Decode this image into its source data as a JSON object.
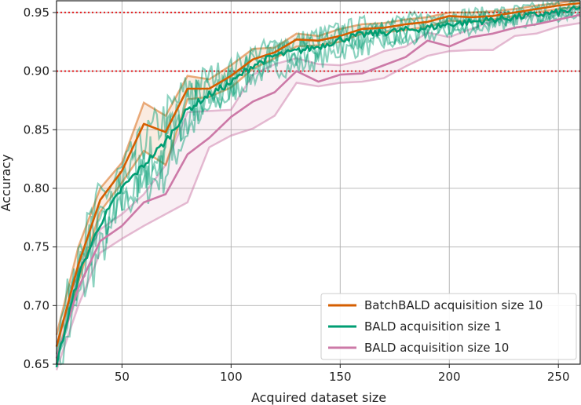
{
  "chart_data": {
    "type": "line",
    "title": "",
    "xlabel": "Acquired dataset size",
    "ylabel": "Accuracy",
    "xlim": [
      20,
      260
    ],
    "ylim": [
      0.65,
      0.96
    ],
    "xticks": [
      50,
      100,
      150,
      200,
      250
    ],
    "xtick_labels": [
      "50",
      "100",
      "150",
      "200",
      "250"
    ],
    "yticks": [
      0.65,
      0.7,
      0.75,
      0.8,
      0.85,
      0.9,
      0.95
    ],
    "ytick_labels": [
      "0.65",
      "0.70",
      "0.75",
      "0.80",
      "0.85",
      "0.90",
      "0.95"
    ],
    "grid": true,
    "legend_position": "lower-right",
    "reference_lines": [
      {
        "y": 0.95,
        "style": "dotted",
        "color": "#e41a1c"
      },
      {
        "y": 0.9,
        "style": "dotted",
        "color": "#e41a1c"
      }
    ],
    "series": [
      {
        "name": "BatchBALD acquisition size 10",
        "color": "#d55e00",
        "step": 10,
        "x": [
          20,
          30,
          40,
          50,
          60,
          70,
          80,
          90,
          100,
          110,
          120,
          130,
          140,
          150,
          160,
          170,
          180,
          190,
          200,
          210,
          220,
          230,
          240,
          250,
          260
        ],
        "mean": [
          0.665,
          0.735,
          0.79,
          0.815,
          0.855,
          0.848,
          0.885,
          0.885,
          0.896,
          0.91,
          0.916,
          0.927,
          0.926,
          0.93,
          0.936,
          0.937,
          0.94,
          0.942,
          0.947,
          0.946,
          0.947,
          0.95,
          0.953,
          0.956,
          0.958
        ],
        "lower": [
          0.655,
          0.72,
          0.78,
          0.805,
          0.832,
          0.82,
          0.876,
          0.878,
          0.886,
          0.902,
          0.911,
          0.921,
          0.922,
          0.925,
          0.932,
          0.933,
          0.935,
          0.938,
          0.943,
          0.942,
          0.944,
          0.947,
          0.95,
          0.953,
          0.955
        ],
        "upper": [
          0.675,
          0.75,
          0.8,
          0.822,
          0.873,
          0.862,
          0.896,
          0.893,
          0.905,
          0.919,
          0.92,
          0.932,
          0.93,
          0.936,
          0.94,
          0.941,
          0.944,
          0.946,
          0.95,
          0.95,
          0.951,
          0.953,
          0.956,
          0.958,
          0.961
        ]
      },
      {
        "name": "BALD acquisition size 1",
        "color": "#009e73",
        "step": 1,
        "x": [
          20,
          30,
          40,
          50,
          60,
          70,
          80,
          90,
          100,
          110,
          120,
          130,
          140,
          150,
          160,
          170,
          180,
          190,
          200,
          210,
          220,
          230,
          240,
          250,
          260
        ],
        "mean": [
          0.65,
          0.725,
          0.77,
          0.8,
          0.82,
          0.84,
          0.867,
          0.88,
          0.89,
          0.905,
          0.913,
          0.917,
          0.921,
          0.927,
          0.931,
          0.933,
          0.935,
          0.937,
          0.94,
          0.942,
          0.944,
          0.946,
          0.948,
          0.95,
          0.953
        ],
        "lower": [
          0.64,
          0.705,
          0.745,
          0.785,
          0.8,
          0.815,
          0.85,
          0.868,
          0.88,
          0.895,
          0.903,
          0.904,
          0.91,
          0.917,
          0.92,
          0.924,
          0.926,
          0.93,
          0.934,
          0.936,
          0.939,
          0.941,
          0.943,
          0.946,
          0.949
        ],
        "upper": [
          0.67,
          0.745,
          0.79,
          0.815,
          0.84,
          0.86,
          0.885,
          0.895,
          0.902,
          0.915,
          0.922,
          0.925,
          0.93,
          0.935,
          0.939,
          0.941,
          0.943,
          0.945,
          0.947,
          0.949,
          0.95,
          0.952,
          0.954,
          0.956,
          0.958
        ]
      },
      {
        "name": "BALD acquisition size 10",
        "color": "#cc79a7",
        "step": 10,
        "x": [
          20,
          30,
          40,
          50,
          60,
          70,
          80,
          90,
          100,
          110,
          120,
          130,
          140,
          150,
          160,
          170,
          180,
          190,
          200,
          210,
          220,
          230,
          240,
          250,
          260
        ],
        "mean": [
          0.655,
          0.715,
          0.755,
          0.768,
          0.788,
          0.795,
          0.829,
          0.843,
          0.861,
          0.874,
          0.882,
          0.9,
          0.891,
          0.897,
          0.898,
          0.905,
          0.912,
          0.926,
          0.921,
          0.929,
          0.932,
          0.937,
          0.94,
          0.944,
          0.948
        ],
        "lower": [
          0.645,
          0.7,
          0.745,
          0.757,
          0.768,
          0.778,
          0.788,
          0.835,
          0.845,
          0.851,
          0.862,
          0.89,
          0.887,
          0.89,
          0.891,
          0.894,
          0.904,
          0.913,
          0.917,
          0.918,
          0.918,
          0.93,
          0.932,
          0.938,
          0.941
        ],
        "upper": [
          0.665,
          0.73,
          0.765,
          0.778,
          0.795,
          0.82,
          0.865,
          0.866,
          0.867,
          0.897,
          0.906,
          0.911,
          0.906,
          0.905,
          0.909,
          0.917,
          0.921,
          0.933,
          0.929,
          0.936,
          0.943,
          0.945,
          0.948,
          0.95,
          0.954
        ]
      }
    ]
  }
}
